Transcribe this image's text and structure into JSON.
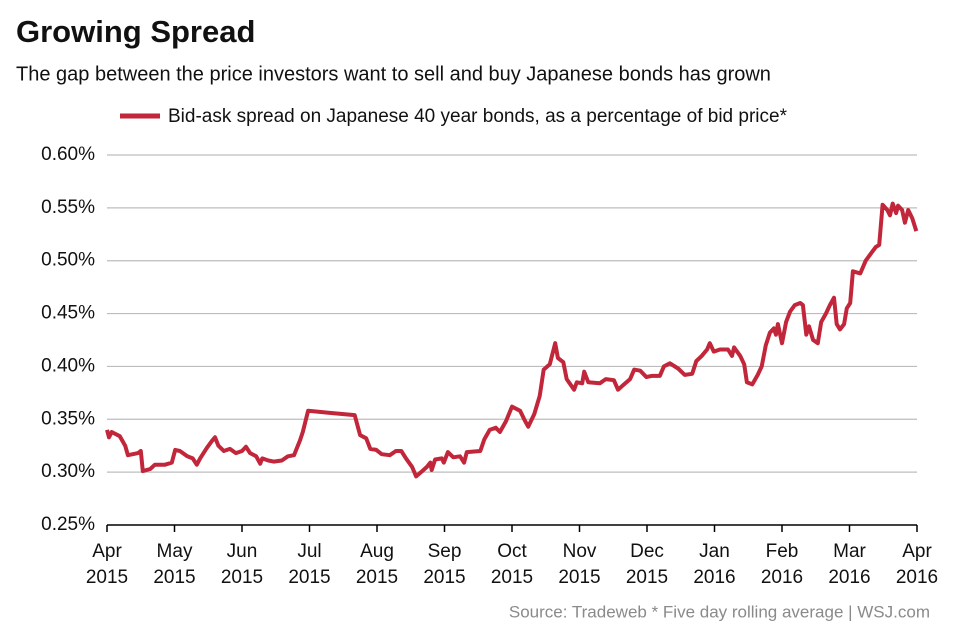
{
  "chart_data": {
    "type": "line",
    "title": "Growing Spread",
    "subtitle": "The gap between the price investors want to sell and buy Japanese bonds has grown",
    "source": "Source: Tradeweb * Five day rolling average  |  WSJ.com",
    "series": [
      {
        "name": "Bid-ask spread on Japanese 40 year bonds, as a percentage of bid price*",
        "color": "#c1263a",
        "x": [
          0.0,
          0.03,
          0.07,
          0.19,
          0.27,
          0.31,
          0.46,
          0.5,
          0.53,
          0.64,
          0.71,
          0.86,
          0.96,
          1.01,
          1.08,
          1.19,
          1.27,
          1.33,
          1.38,
          1.48,
          1.56,
          1.6,
          1.65,
          1.73,
          1.82,
          1.91,
          2.0,
          2.06,
          2.12,
          2.21,
          2.27,
          2.3,
          2.39,
          2.47,
          2.59,
          2.68,
          2.77,
          2.86,
          2.9,
          2.98,
          3.3,
          3.67,
          3.75,
          3.84,
          3.9,
          3.99,
          4.07,
          4.19,
          4.28,
          4.36,
          4.43,
          4.52,
          4.58,
          4.67,
          4.74,
          4.79,
          4.81,
          4.86,
          4.96,
          4.99,
          5.05,
          5.13,
          5.23,
          5.29,
          5.33,
          5.53,
          5.59,
          5.67,
          5.76,
          5.82,
          5.91,
          6.0,
          6.12,
          6.18,
          6.24,
          6.33,
          6.41,
          6.47,
          6.56,
          6.64,
          6.68,
          6.76,
          6.81,
          6.92,
          6.96,
          7.04,
          7.07,
          7.13,
          7.3,
          7.39,
          7.51,
          7.57,
          7.66,
          7.75,
          7.81,
          7.9,
          7.99,
          8.07,
          8.19,
          8.25,
          8.34,
          8.46,
          8.56,
          8.67,
          8.73,
          8.81,
          8.89,
          8.93,
          8.99,
          9.08,
          9.2,
          9.26,
          9.29,
          9.38,
          9.44,
          9.48,
          9.56,
          9.64,
          9.7,
          9.76,
          9.82,
          9.88,
          9.91,
          9.94,
          10.0,
          10.06,
          10.12,
          10.19,
          10.27,
          10.31,
          10.36,
          10.4,
          10.46,
          10.53,
          10.58,
          10.65,
          10.71,
          10.77,
          10.81,
          10.86,
          10.92,
          10.96,
          11.01,
          11.05,
          11.16,
          11.24,
          11.33,
          11.39,
          11.44,
          11.49,
          11.56,
          11.6,
          11.64,
          11.69,
          11.72,
          11.78,
          11.82,
          11.87,
          11.93,
          11.99
        ],
        "values": [
          0.34,
          0.333,
          0.338,
          0.334,
          0.325,
          0.316,
          0.318,
          0.32,
          0.301,
          0.303,
          0.307,
          0.307,
          0.309,
          0.321,
          0.32,
          0.315,
          0.313,
          0.307,
          0.313,
          0.323,
          0.33,
          0.333,
          0.325,
          0.32,
          0.322,
          0.318,
          0.32,
          0.324,
          0.318,
          0.315,
          0.308,
          0.313,
          0.311,
          0.31,
          0.311,
          0.315,
          0.316,
          0.33,
          0.338,
          0.358,
          0.356,
          0.354,
          0.335,
          0.332,
          0.322,
          0.321,
          0.317,
          0.316,
          0.32,
          0.32,
          0.313,
          0.305,
          0.296,
          0.301,
          0.305,
          0.309,
          0.302,
          0.312,
          0.313,
          0.309,
          0.319,
          0.314,
          0.315,
          0.309,
          0.319,
          0.32,
          0.331,
          0.34,
          0.342,
          0.338,
          0.348,
          0.362,
          0.358,
          0.35,
          0.343,
          0.355,
          0.372,
          0.397,
          0.402,
          0.422,
          0.408,
          0.404,
          0.388,
          0.378,
          0.385,
          0.384,
          0.395,
          0.385,
          0.384,
          0.388,
          0.387,
          0.378,
          0.383,
          0.388,
          0.397,
          0.396,
          0.39,
          0.391,
          0.391,
          0.4,
          0.403,
          0.398,
          0.392,
          0.393,
          0.405,
          0.41,
          0.416,
          0.422,
          0.414,
          0.416,
          0.416,
          0.41,
          0.418,
          0.41,
          0.402,
          0.385,
          0.383,
          0.392,
          0.4,
          0.42,
          0.432,
          0.436,
          0.43,
          0.44,
          0.422,
          0.442,
          0.452,
          0.458,
          0.46,
          0.458,
          0.43,
          0.438,
          0.425,
          0.422,
          0.442,
          0.45,
          0.458,
          0.465,
          0.44,
          0.435,
          0.44,
          0.455,
          0.46,
          0.49,
          0.488,
          0.5,
          0.508,
          0.513,
          0.515,
          0.553,
          0.548,
          0.543,
          0.554,
          0.545,
          0.552,
          0.548,
          0.536,
          0.548,
          0.54,
          0.528
        ]
      }
    ],
    "xlim": [
      0,
      12
    ],
    "xticks": [
      {
        "value": 0,
        "label": "Apr 2015"
      },
      {
        "value": 1,
        "label": "May 2015"
      },
      {
        "value": 2,
        "label": "Jun 2015"
      },
      {
        "value": 3,
        "label": "Jul 2015"
      },
      {
        "value": 4,
        "label": "Aug 2015"
      },
      {
        "value": 5,
        "label": "Sep 2015"
      },
      {
        "value": 6,
        "label": "Oct 2015"
      },
      {
        "value": 7,
        "label": "Nov 2015"
      },
      {
        "value": 8,
        "label": "Dec 2015"
      },
      {
        "value": 9,
        "label": "Jan 2016"
      },
      {
        "value": 10,
        "label": "Feb 2016"
      },
      {
        "value": 11,
        "label": "Mar 2016"
      },
      {
        "value": 12,
        "label": "Apr 2016"
      }
    ],
    "ylim": [
      0.25,
      0.6
    ],
    "yticks": [
      {
        "value": 0.25,
        "label": "0.25%"
      },
      {
        "value": 0.3,
        "label": "0.30%"
      },
      {
        "value": 0.35,
        "label": "0.35%"
      },
      {
        "value": 0.4,
        "label": "0.40%"
      },
      {
        "value": 0.45,
        "label": "0.45%"
      },
      {
        "value": 0.5,
        "label": "0.50%"
      },
      {
        "value": 0.55,
        "label": "0.55%"
      },
      {
        "value": 0.6,
        "label": "0.60%"
      }
    ],
    "grid": true
  }
}
